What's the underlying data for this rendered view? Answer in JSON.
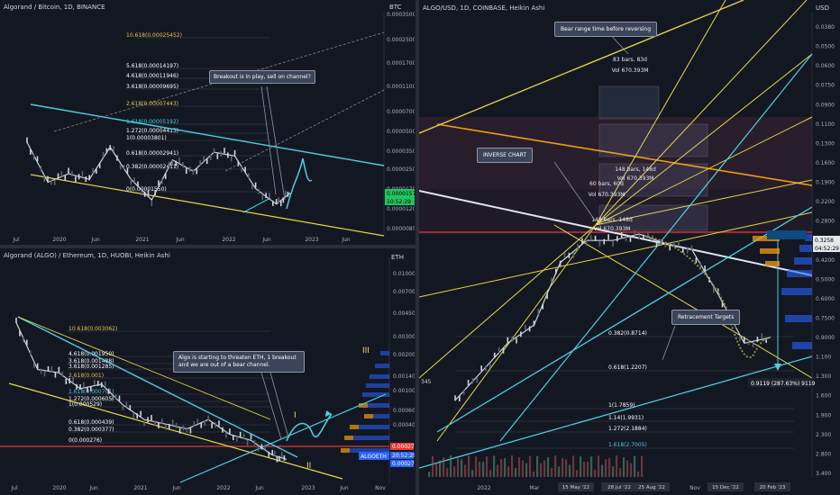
{
  "panels": {
    "top_left": {
      "title": "Algorand / Bitcoin, 1D, BINANCE",
      "axis_label": "BTC",
      "price_ticks": [
        "0.00035000",
        "0.00025000",
        "0.00017000",
        "0.00011000",
        "0.00007000",
        "0.00005000",
        "0.00003500",
        "0.00002500",
        "0.00001700",
        "0.00001200",
        "0.00000850"
      ],
      "time_ticks": [
        "Jul",
        "2020",
        "Jun",
        "2021",
        "Jun",
        "2022",
        "Jun",
        "2023",
        "Jun"
      ],
      "fib_labels": [
        "10.618(0.00025452)",
        "5.618(0.00014197)",
        "4.618(0.00011946)",
        "3.618(0.00009695)",
        "2.618(0.00007443)",
        "1.618(0.00005192)",
        "1.272(0.00004413)",
        "1(0.00003801)",
        "0.618(0.00002941)",
        "0.382(0.00002411)",
        "0(0.00001550)"
      ],
      "annotation": "Breakout is in play, sell on channel?",
      "price_badges": [
        "0.00001576",
        "10:52:29"
      ]
    },
    "bottom_left": {
      "title": "Algorand (ALGO) / Ethereum, 1D, HUOBI, Heikin Ashi",
      "axis_label": "ETH",
      "price_ticks": [
        "0.010000",
        "0.007000",
        "0.004500",
        "0.003000",
        "0.002000",
        "0.001400",
        "0.001000",
        "0.000600",
        "0.000400"
      ],
      "time_ticks": [
        "Jul",
        "2020",
        "Jun",
        "2021",
        "Jun",
        "2022",
        "Jun",
        "2023",
        "Jun",
        "Nov"
      ],
      "fib_labels": [
        "10.618(0.003062)",
        "4.618(0.001950)",
        "3.618(0.001488)",
        "3.618(0.001285)",
        "2.618(0.001)",
        "1.618(0.000701)",
        "1.272(0.000605)",
        "1(0.000529)",
        "0.618(0.000439)",
        "0.382(0.000377)",
        "0(0.000276)"
      ],
      "annotation": "Algo is starting to threaten ETH, 1 breakout and we are out of a bear channel.",
      "roman_labels": [
        "III",
        "I",
        "II"
      ],
      "price_badges": [
        "0.000276",
        "ALGOETH",
        "20:52:29",
        "0.000273"
      ]
    },
    "right": {
      "title": "ALGO/USD, 1D, COINBASE, Heikin Ashi",
      "axis_label": "USD",
      "price_ticks": [
        "0.0380",
        "0.0500",
        "0.0600",
        "0.0750",
        "0.0900",
        "0.1100",
        "0.1300",
        "0.1600",
        "0.1900",
        "0.2200",
        "0.2800",
        "0.3500",
        "0.4200",
        "0.5000",
        "0.6000",
        "0.7500",
        "0.9000",
        "1.100",
        "1.300",
        "1.600",
        "1.900",
        "2.300",
        "2.800",
        "3.400"
      ],
      "time_ticks": [
        "2022",
        "Mar",
        "Nov"
      ],
      "date_badges": [
        "15 May '22",
        "28 Jul '22",
        "25 Aug '22",
        "15 Dec '22",
        "20 Feb '23"
      ],
      "annotations": [
        "Bear range time before reversing",
        "INVERSE CHART",
        "Retracement Targets"
      ],
      "range_labels": [
        "83 bars, 83d",
        "Vol 670.393M",
        "148 bars, 148d",
        "Vol 670.393M",
        "60 bars, 60d",
        "Vol 670.393M",
        "148 bars, 148d",
        "Vol 670.393M"
      ],
      "fib_labels": [
        "0.382(0.8714)",
        "0.618(1.2207)",
        "1(1.7859)",
        "1.14(1.9931)",
        "1.272(2.1884)",
        "1.618(2.7005)"
      ],
      "measure_label": "0.9119 (287.63%) 9119",
      "price_badges": [
        "0.3258",
        "04:52:29"
      ],
      "left_edge_label": "345"
    }
  },
  "colors": {
    "background": "#131722",
    "fib_yellow": "#f0e050",
    "channel_cyan": "#4dd0e1",
    "channel_yellow": "#e8d84a",
    "price_white": "#c8ccd6",
    "orange": "#f39c12",
    "green_badge": "#22c55e",
    "red_line": "#e53935",
    "blue_badge": "#2962ff"
  },
  "chart_data": [
    {
      "type": "line",
      "title": "Algorand / Bitcoin, 1D, BINANCE",
      "ylabel": "BTC",
      "scale": "log",
      "series": [
        {
          "name": "",
          "x": [
            "2019-07",
            "2019-10",
            "2020-01",
            "2020-04",
            "2020-07",
            "2020-10",
            "2021-01",
            "2021-04",
            "2021-07",
            "2021-10",
            "2022-01",
            "2022-04",
            "2022-07",
            "2022-09"
          ],
          "values": [
            3.8e-05,
            1.9e-05,
            2.2e-05,
            2e-05,
            3.5e-05,
            2e-05,
            1.4e-05,
            2.8e-05,
            2.3e-05,
            3.2e-05,
            3e-05,
            1.7e-05,
            1.3e-05,
            1.576e-05
          ]
        }
      ]
    },
    {
      "type": "line",
      "title": "Algorand (ALGO) / Ethereum, 1D, HUOBI, Heikin Ashi",
      "ylabel": "ETH",
      "scale": "log",
      "series": [
        {
          "name": "",
          "x": [
            "2019-07",
            "2019-10",
            "2020-01",
            "2020-04",
            "2020-07",
            "2020-10",
            "2021-01",
            "2021-04",
            "2021-07",
            "2021-10",
            "2022-01",
            "2022-04",
            "2022-07",
            "2022-09"
          ],
          "values": [
            0.004,
            0.0016,
            0.0015,
            0.0011,
            0.0012,
            0.0008,
            0.0006,
            0.00055,
            0.0005,
            0.0006,
            0.00045,
            0.0004,
            0.0003,
            0.000276
          ]
        }
      ]
    },
    {
      "type": "line",
      "title": "ALGO/USD, 1D, COINBASE, Heikin Ashi",
      "ylabel": "USD",
      "scale": "log-inverted",
      "series": [
        {
          "name": "",
          "x": [
            "2022-01",
            "2022-02",
            "2022-03",
            "2022-04",
            "2022-05",
            "2022-06",
            "2022-07",
            "2022-08",
            "2022-09",
            "2022-10",
            "2022-11",
            "2022-12",
            "2023-01"
          ],
          "values": [
            1.6,
            1.2,
            0.9,
            0.75,
            0.4,
            0.32,
            0.32,
            0.3,
            0.33,
            0.35,
            0.55,
            0.9,
            0.85
          ]
        }
      ]
    }
  ]
}
